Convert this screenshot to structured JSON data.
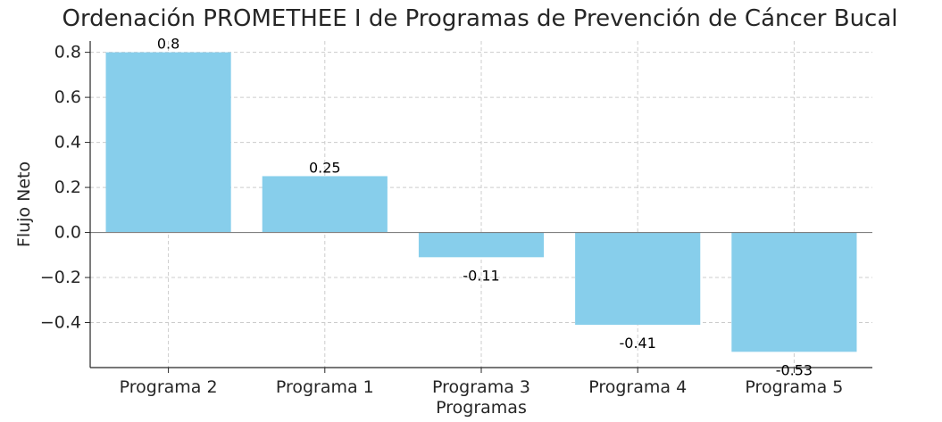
{
  "chart_data": {
    "type": "bar",
    "title": "Ordenación PROMETHEE I de Programas de Prevención de Cáncer Bucal",
    "xlabel": "Programas",
    "ylabel": "Flujo Neto",
    "categories": [
      "Programa 2",
      "Programa 1",
      "Programa 3",
      "Programa 4",
      "Programa 5"
    ],
    "values": [
      0.8,
      0.25,
      -0.11,
      -0.41,
      -0.53
    ],
    "data_labels": [
      "0.8",
      "0.25",
      "-0.11",
      "-0.41",
      "-0.53"
    ],
    "ylim": [
      -0.6,
      0.85
    ],
    "yticks": [
      0.8,
      0.6,
      0.4,
      0.2,
      0.0,
      -0.2,
      -0.4
    ],
    "ytick_labels": [
      "0.8",
      "0.6",
      "0.4",
      "0.2",
      "0.0",
      "−0.2",
      "−0.4"
    ],
    "grid": true,
    "bar_color": "#87ceeb",
    "zero_line_color": "#808080",
    "grid_color": "#cccccc"
  }
}
